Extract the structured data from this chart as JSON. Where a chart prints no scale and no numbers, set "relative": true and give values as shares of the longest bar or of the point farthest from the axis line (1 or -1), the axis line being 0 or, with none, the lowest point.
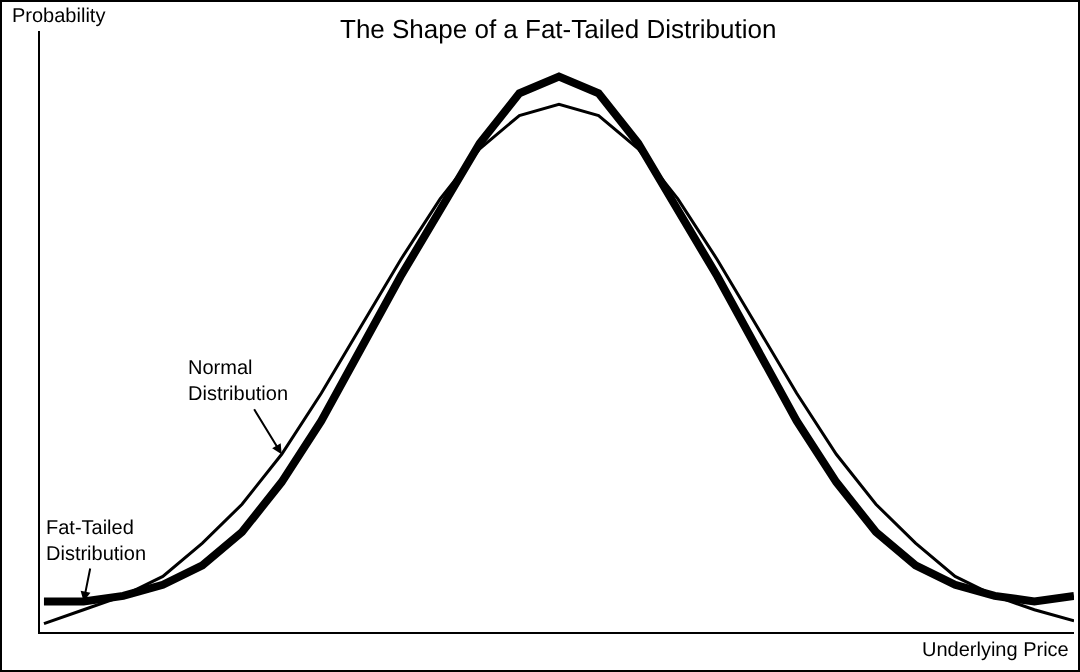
{
  "chart_data": {
    "type": "line",
    "title": "The Shape of a Fat-Tailed Distribution",
    "xlabel": "Underlying Price",
    "ylabel": "Probability",
    "relative": true,
    "legend": false,
    "marker": "none",
    "line_style": "solid",
    "categories": [
      null,
      null,
      null,
      null,
      null,
      null,
      null,
      null,
      null,
      null,
      null,
      null,
      null,
      null,
      null,
      null,
      null,
      null,
      null,
      null,
      null,
      null,
      null,
      null,
      null,
      null,
      null
    ],
    "series": [
      {
        "name": "Fat-Tailed Distribution",
        "color": "#000000",
        "values": [
          0.055,
          0.055,
          0.065,
          0.085,
          0.12,
          0.18,
          0.27,
          0.38,
          0.51,
          0.64,
          0.76,
          0.88,
          0.97,
          1,
          0.97,
          0.88,
          0.76,
          0.64,
          0.51,
          0.38,
          0.27,
          0.18,
          0.12,
          0.085,
          0.065,
          0.055,
          0.065
        ]
      },
      {
        "name": "Normal Distribution",
        "color": "#000000",
        "values": [
          0.015,
          0.04,
          0.065,
          0.1,
          0.16,
          0.23,
          0.32,
          0.43,
          0.55,
          0.67,
          0.78,
          0.87,
          0.93,
          0.95,
          0.93,
          0.87,
          0.78,
          0.67,
          0.55,
          0.43,
          0.32,
          0.23,
          0.16,
          0.1,
          0.065,
          0.04,
          0.02
        ]
      }
    ]
  }
}
